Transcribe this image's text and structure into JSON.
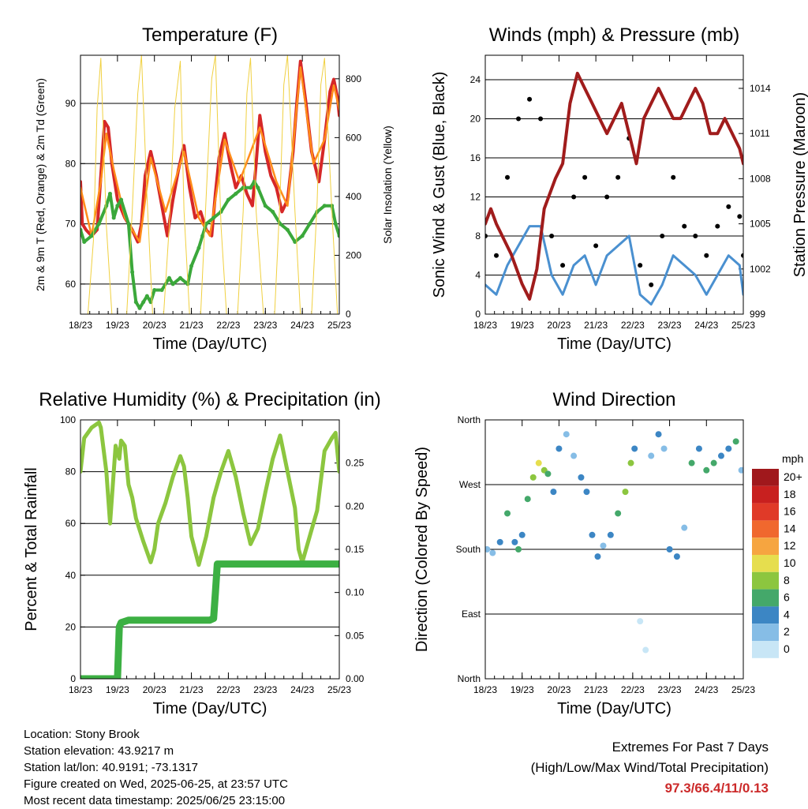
{
  "x_tick_labels": [
    "18/23",
    "19/23",
    "20/23",
    "21/23",
    "22/23",
    "23/23",
    "24/23",
    "25/23"
  ],
  "chart_data": [
    {
      "type": "line",
      "title": "Temperature (F)",
      "xlabel": "Time (Day/UTC)",
      "ylabel": "2m & 9m T (Red, Orange) & 2m Td (Green)",
      "y2label": "Solar Insolation (Yellow)",
      "ylim": [
        55,
        98
      ],
      "y2lim": [
        0,
        880
      ],
      "xlim": [
        0,
        7
      ],
      "yticks": [
        60,
        70,
        80,
        90
      ],
      "y2ticks": [
        0,
        200,
        400,
        600,
        800
      ],
      "grid": true,
      "series": [
        {
          "name": "2m T",
          "color": "#d62728",
          "x": [
            0,
            0.05,
            0.15,
            0.3,
            0.45,
            0.55,
            0.65,
            0.75,
            0.85,
            1.0,
            1.2,
            1.4,
            1.55,
            1.65,
            1.75,
            1.9,
            2.05,
            2.2,
            2.35,
            2.5,
            2.65,
            2.8,
            2.95,
            3.1,
            3.25,
            3.4,
            3.55,
            3.65,
            3.75,
            3.9,
            4.05,
            4.2,
            4.35,
            4.5,
            4.65,
            4.75,
            4.85,
            5.0,
            5.15,
            5.3,
            5.45,
            5.6,
            5.75,
            5.85,
            5.95,
            6.1,
            6.25,
            6.45,
            6.6,
            6.75,
            6.85,
            6.95,
            7.0
          ],
          "y": [
            77,
            70,
            69,
            68,
            69,
            78,
            87,
            86,
            80,
            74,
            71,
            69,
            67,
            70,
            78,
            82,
            78,
            73,
            68,
            74,
            79,
            83,
            76,
            71,
            72,
            69,
            68,
            75,
            81,
            85,
            80,
            76,
            78,
            75,
            73,
            80,
            88,
            82,
            78,
            76,
            72,
            74,
            82,
            90,
            97,
            90,
            82,
            77,
            84,
            92,
            94,
            91,
            88
          ]
        },
        {
          "name": "9m T",
          "color": "#ff8c1a",
          "x": [
            0,
            0.3,
            0.55,
            0.7,
            0.9,
            1.2,
            1.6,
            1.9,
            2.3,
            2.8,
            3.2,
            3.5,
            3.9,
            4.3,
            4.85,
            5.3,
            5.6,
            5.95,
            6.3,
            6.6,
            6.85,
            7.0
          ],
          "y": [
            76,
            68,
            77,
            85,
            79,
            71,
            67,
            81,
            72,
            82,
            71,
            68,
            84,
            77,
            86,
            77,
            73,
            96,
            80,
            84,
            93,
            89
          ]
        },
        {
          "name": "2m Td",
          "color": "#3ba83b",
          "x": [
            0,
            0.1,
            0.3,
            0.5,
            0.7,
            0.8,
            0.9,
            1.0,
            1.1,
            1.3,
            1.4,
            1.5,
            1.6,
            1.7,
            1.8,
            1.9,
            2.0,
            2.2,
            2.4,
            2.5,
            2.7,
            2.9,
            3.0,
            3.2,
            3.3,
            3.4,
            3.6,
            3.8,
            4.0,
            4.2,
            4.4,
            4.6,
            4.7,
            4.8,
            5.0,
            5.2,
            5.4,
            5.6,
            5.8,
            6.0,
            6.2,
            6.4,
            6.6,
            6.8,
            6.9,
            7.0
          ],
          "y": [
            69,
            67,
            68,
            70,
            73,
            75,
            71,
            73,
            74,
            70,
            62,
            57,
            56,
            57,
            58,
            57,
            59,
            59,
            61,
            60,
            61,
            60,
            63,
            66,
            68,
            70,
            71,
            72,
            74,
            75,
            76,
            76,
            77,
            76,
            73,
            72,
            70,
            69,
            67,
            68,
            70,
            72,
            73,
            73,
            70,
            68
          ]
        },
        {
          "name": "Solar Insolation",
          "color": "#f0d040",
          "axis": "y2",
          "x": [
            0.2,
            0.35,
            0.45,
            0.55,
            0.7,
            0.85,
            1.25,
            1.4,
            1.55,
            1.65,
            1.8,
            1.95,
            2.25,
            2.4,
            2.55,
            2.7,
            2.8,
            2.95,
            3.25,
            3.4,
            3.55,
            3.65,
            3.8,
            3.95,
            4.25,
            4.4,
            4.5,
            4.6,
            4.75,
            4.95,
            5.25,
            5.4,
            5.5,
            5.6,
            5.8,
            5.95,
            6.25,
            6.4,
            6.5,
            6.6,
            6.8,
            6.95
          ],
          "y": [
            0,
            250,
            700,
            870,
            300,
            0,
            0,
            350,
            750,
            880,
            400,
            0,
            0,
            300,
            700,
            860,
            350,
            0,
            0,
            400,
            800,
            880,
            300,
            0,
            0,
            350,
            750,
            870,
            350,
            0,
            0,
            400,
            780,
            880,
            350,
            0,
            0,
            380,
            780,
            870,
            350,
            0
          ]
        }
      ]
    },
    {
      "type": "line",
      "title": "Winds (mph) & Pressure (mb)",
      "xlabel": "Time (Day/UTC)",
      "ylabel": "Sonic Wind & Gust (Blue, Black)",
      "y2label": "Station Pressure (Maroon)",
      "ylim": [
        0,
        26.5
      ],
      "y2lim": [
        999,
        1016.2
      ],
      "xlim": [
        0,
        7
      ],
      "yticks": [
        0,
        4,
        8,
        12,
        16,
        20,
        24
      ],
      "y2ticks": [
        999,
        1002,
        1005,
        1008,
        1011,
        1014
      ],
      "grid": true,
      "series": [
        {
          "name": "Sonic Wind",
          "color": "#4a90d0",
          "x": [
            0,
            0.3,
            0.6,
            0.9,
            1.2,
            1.5,
            1.8,
            2.1,
            2.4,
            2.7,
            3.0,
            3.3,
            3.6,
            3.9,
            4.2,
            4.5,
            4.8,
            5.1,
            5.4,
            5.7,
            6.0,
            6.3,
            6.6,
            6.9,
            7.0
          ],
          "y": [
            3,
            2,
            5,
            7,
            9,
            9,
            4,
            2,
            5,
            6,
            3,
            6,
            7,
            8,
            2,
            1,
            3,
            6,
            5,
            4,
            2,
            4,
            6,
            5,
            2
          ]
        },
        {
          "name": "Gust",
          "color": "#000000",
          "x": [
            0,
            0.3,
            0.6,
            0.9,
            1.2,
            1.5,
            1.8,
            2.1,
            2.4,
            2.7,
            3.0,
            3.3,
            3.6,
            3.9,
            4.2,
            4.5,
            4.8,
            5.1,
            5.4,
            5.7,
            6.0,
            6.3,
            6.6,
            6.9,
            7.0
          ],
          "y": [
            8,
            6,
            14,
            20,
            22,
            20,
            8,
            5,
            12,
            14,
            7,
            12,
            14,
            18,
            5,
            3,
            8,
            14,
            9,
            8,
            6,
            9,
            11,
            10,
            6
          ]
        },
        {
          "name": "Station Pressure",
          "color": "#a01c1c",
          "axis": "y2",
          "x": [
            0,
            0.15,
            0.3,
            0.5,
            0.7,
            1.0,
            1.2,
            1.4,
            1.6,
            1.9,
            2.1,
            2.3,
            2.5,
            2.7,
            2.9,
            3.1,
            3.3,
            3.5,
            3.7,
            3.9,
            4.0,
            4.1,
            4.3,
            4.5,
            4.7,
            4.9,
            5.1,
            5.3,
            5.5,
            5.7,
            5.9,
            6.1,
            6.3,
            6.5,
            6.7,
            6.9,
            7.0
          ],
          "y": [
            1005,
            1006,
            1005,
            1004,
            1003,
            1001,
            1000,
            1002,
            1006,
            1008,
            1009,
            1013,
            1015,
            1014,
            1013,
            1012,
            1011,
            1012,
            1013,
            1011,
            1010,
            1009,
            1012,
            1013,
            1014,
            1013,
            1012,
            1012,
            1013,
            1014,
            1013,
            1011,
            1011,
            1012,
            1011,
            1010,
            1009
          ]
        }
      ]
    },
    {
      "type": "line",
      "title": "Relative Humidity (%) & Precipitation (in)",
      "xlabel": "Time (Day/UTC)",
      "ylabel": "Percent & Total Rainfall",
      "ylim": [
        0,
        100
      ],
      "y2lim": [
        0,
        0.3
      ],
      "xlim": [
        0,
        7
      ],
      "yticks": [
        0,
        20,
        40,
        60,
        80,
        100
      ],
      "y2ticks": [
        0.0,
        0.05,
        0.1,
        0.15,
        0.2,
        0.25
      ],
      "grid": true,
      "series": [
        {
          "name": "Relative Humidity",
          "color": "#8cc63f",
          "x": [
            0,
            0.1,
            0.3,
            0.5,
            0.55,
            0.7,
            0.8,
            0.95,
            1.05,
            1.1,
            1.2,
            1.3,
            1.4,
            1.5,
            1.7,
            1.9,
            2.0,
            2.1,
            2.3,
            2.5,
            2.7,
            2.8,
            2.9,
            3.0,
            3.2,
            3.4,
            3.6,
            3.8,
            4.0,
            4.2,
            4.4,
            4.6,
            4.8,
            5.0,
            5.2,
            5.4,
            5.6,
            5.8,
            5.9,
            6.0,
            6.2,
            6.4,
            6.6,
            6.8,
            6.9,
            7.0
          ],
          "y": [
            80,
            93,
            97,
            99,
            97,
            80,
            60,
            90,
            85,
            92,
            90,
            75,
            70,
            62,
            53,
            45,
            50,
            60,
            68,
            78,
            86,
            82,
            70,
            55,
            44,
            55,
            70,
            80,
            88,
            78,
            64,
            52,
            58,
            72,
            85,
            94,
            80,
            66,
            50,
            45,
            55,
            65,
            88,
            93,
            95,
            80
          ]
        },
        {
          "name": "Total Rainfall",
          "color": "#3cb043",
          "axis": "y2",
          "x": [
            0,
            0.6,
            0.9,
            1.0,
            1.05,
            1.1,
            1.3,
            1.6,
            2.0,
            2.5,
            3.0,
            3.5,
            3.6,
            3.65,
            3.7,
            4.0,
            4.5,
            5.0,
            5.5,
            6.0,
            6.5,
            7.0
          ],
          "y": [
            0,
            0,
            0,
            0,
            0.06,
            0.065,
            0.068,
            0.068,
            0.068,
            0.068,
            0.068,
            0.068,
            0.07,
            0.1,
            0.133,
            0.133,
            0.133,
            0.133,
            0.133,
            0.133,
            0.133,
            0.133
          ]
        }
      ]
    },
    {
      "type": "scatter",
      "title": "Wind Direction",
      "xlabel": "Time (Day/UTC)",
      "ylabel": "Direction (Colored By Speed)",
      "ylim": [
        0,
        360
      ],
      "xlim": [
        0,
        7
      ],
      "ytick_labels": [
        "North",
        "East",
        "South",
        "West",
        "North"
      ],
      "grid": true,
      "legend_title": "mph",
      "legend": [
        {
          "label": "20+",
          "color": "#a0181c"
        },
        {
          "label": "18",
          "color": "#c8201f"
        },
        {
          "label": "16",
          "color": "#e03a28"
        },
        {
          "label": "14",
          "color": "#f0682e"
        },
        {
          "label": "12",
          "color": "#f6a540"
        },
        {
          "label": "10",
          "color": "#e6de4e"
        },
        {
          "label": "8",
          "color": "#8cc63f"
        },
        {
          "label": "6",
          "color": "#44a86a"
        },
        {
          "label": "4",
          "color": "#3c86c4"
        },
        {
          "label": "2",
          "color": "#86bde6"
        },
        {
          "label": "0",
          "color": "#c8e6f6"
        }
      ],
      "series": [
        {
          "name": "Wind Direction",
          "x": [
            0.05,
            0.2,
            0.4,
            0.6,
            0.8,
            0.9,
            1.0,
            1.15,
            1.3,
            1.45,
            1.6,
            1.7,
            1.85,
            2.0,
            2.2,
            2.4,
            2.6,
            2.75,
            2.9,
            3.05,
            3.2,
            3.4,
            3.6,
            3.8,
            3.95,
            4.05,
            4.2,
            4.35,
            4.5,
            4.7,
            4.85,
            5.0,
            5.2,
            5.4,
            5.6,
            5.8,
            6.0,
            6.2,
            6.4,
            6.6,
            6.8,
            6.95
          ],
          "y": [
            180,
            175,
            190,
            230,
            190,
            180,
            200,
            250,
            280,
            300,
            290,
            285,
            260,
            320,
            340,
            310,
            280,
            260,
            200,
            170,
            185,
            200,
            230,
            260,
            300,
            320,
            80,
            40,
            310,
            340,
            320,
            180,
            170,
            210,
            300,
            320,
            290,
            300,
            310,
            320,
            330,
            290
          ],
          "speed": [
            3,
            2,
            4,
            6,
            5,
            7,
            4,
            6,
            8,
            10,
            9,
            7,
            5,
            4,
            3,
            3,
            5,
            4,
            5,
            4,
            3,
            5,
            6,
            9,
            8,
            4,
            1,
            1,
            3,
            4,
            3,
            5,
            4,
            3,
            6,
            5,
            6,
            7,
            4,
            5,
            6,
            3
          ]
        }
      ]
    }
  ],
  "info": {
    "location": "Location: Stony Brook",
    "elevation": "Station elevation: 43.9217 m",
    "latlon": "Station lat/lon: 40.9191; -73.1317",
    "created": "Figure created on Wed, 2025-06-25, at 23:57 UTC",
    "recent": "Most recent data timestamp: 2025/06/25 23:15:00"
  },
  "extremes": {
    "title": "Extremes For Past 7 Days",
    "subtitle": "(High/Low/Max Wind/Total Precipitation)",
    "values": "97.3/66.4/11/0.13"
  }
}
